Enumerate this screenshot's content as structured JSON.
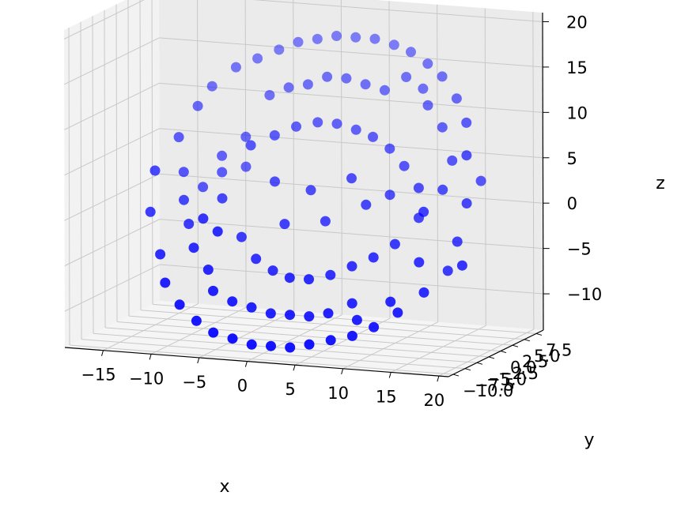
{
  "chart_data": {
    "type": "scatter",
    "projection": "3d",
    "title": "",
    "xlabel": "x",
    "ylabel": "y",
    "zlabel": "z",
    "xlim": [
      -19,
      21
    ],
    "ylim": [
      -11,
      9
    ],
    "zlim": [
      -14,
      21
    ],
    "x_ticks": [
      -15,
      -10,
      -5,
      0,
      5,
      10,
      15,
      20
    ],
    "y_ticks": [
      -10.0,
      -7.5,
      -5.0,
      -2.5,
      0.0,
      2.5,
      5.0,
      7.5
    ],
    "z_ticks": [
      -10,
      -5,
      0,
      5,
      10,
      15,
      20
    ],
    "x_tick_labels": [
      "−15",
      "−10",
      "−5",
      "0",
      "5",
      "10",
      "15",
      "20"
    ],
    "y_tick_labels": [
      "−10.0",
      "−7.5",
      "−5.0",
      "−2.5",
      "0.0",
      "2.5",
      "5.0",
      "7.5"
    ],
    "z_tick_labels": [
      "−10",
      "−5",
      "0",
      "5",
      "10",
      "15",
      "20"
    ],
    "grid": true,
    "marker_color": "#0000ff",
    "series": [
      {
        "shape": "torus-like point cloud",
        "points": [
          [
            -15.0,
            0.0,
            3.0
          ],
          [
            -14.0,
            3.0,
            6.0
          ],
          [
            -14.5,
            -2.0,
            -1.0
          ],
          [
            -13.0,
            5.0,
            9.0
          ],
          [
            -12.5,
            -4.0,
            -5.0
          ],
          [
            -12.0,
            6.0,
            11.0
          ],
          [
            -11.0,
            -6.0,
            -7.5
          ],
          [
            -10.0,
            7.0,
            13.0
          ],
          [
            -9.0,
            -7.0,
            -9.5
          ],
          [
            -8.0,
            7.5,
            14.0
          ],
          [
            -7.0,
            -7.5,
            -11.0
          ],
          [
            -6.0,
            8.0,
            15.0
          ],
          [
            -5.0,
            -8.0,
            -12.0
          ],
          [
            -4.0,
            8.0,
            16.0
          ],
          [
            -3.0,
            -8.0,
            -12.5
          ],
          [
            -2.0,
            8.0,
            16.5
          ],
          [
            -1.0,
            -8.0,
            -13.0
          ],
          [
            0.0,
            8.0,
            17.0
          ],
          [
            1.0,
            -8.0,
            -13.0
          ],
          [
            2.0,
            8.0,
            17.0
          ],
          [
            3.0,
            -8.0,
            -13.0
          ],
          [
            4.0,
            8.0,
            17.0
          ],
          [
            5.0,
            -8.0,
            -12.5
          ],
          [
            6.0,
            8.0,
            16.5
          ],
          [
            7.0,
            -7.5,
            -12.0
          ],
          [
            8.0,
            7.5,
            16.0
          ],
          [
            9.0,
            -7.0,
            -11.5
          ],
          [
            10.0,
            7.0,
            15.0
          ],
          [
            11.0,
            -6.5,
            -10.5
          ],
          [
            12.0,
            6.0,
            14.0
          ],
          [
            13.0,
            -5.5,
            -9.0
          ],
          [
            14.0,
            5.0,
            12.0
          ],
          [
            15.0,
            -4.0,
            -7.0
          ],
          [
            16.0,
            3.0,
            10.0
          ],
          [
            16.5,
            -2.0,
            -5.0
          ],
          [
            17.0,
            1.0,
            7.0
          ],
          [
            17.5,
            0.0,
            2.0
          ],
          [
            17.0,
            -1.0,
            -2.0
          ],
          [
            18.0,
            2.0,
            4.0
          ],
          [
            18.5,
            -3.0,
            -4.0
          ],
          [
            -6.0,
            2.0,
            6.0
          ],
          [
            -5.0,
            -2.0,
            -3.0
          ],
          [
            -4.0,
            3.0,
            7.0
          ],
          [
            -3.0,
            -3.0,
            -5.0
          ],
          [
            -2.0,
            3.5,
            8.0
          ],
          [
            -1.0,
            -3.5,
            -6.0
          ],
          [
            0.0,
            4.0,
            8.5
          ],
          [
            1.0,
            -4.0,
            -6.5
          ],
          [
            2.0,
            4.0,
            8.5
          ],
          [
            3.0,
            -4.0,
            -6.5
          ],
          [
            4.0,
            4.0,
            8.0
          ],
          [
            5.0,
            -3.5,
            -6.0
          ],
          [
            6.0,
            3.5,
            7.5
          ],
          [
            7.0,
            -3.0,
            -5.0
          ],
          [
            8.0,
            3.0,
            6.5
          ],
          [
            9.0,
            -2.5,
            -4.0
          ],
          [
            10.0,
            2.0,
            5.0
          ],
          [
            11.0,
            -2.0,
            -2.5
          ],
          [
            12.0,
            1.0,
            3.0
          ],
          [
            12.5,
            0.0,
            0.0
          ],
          [
            -10.0,
            4.0,
            4.0
          ],
          [
            -9.0,
            -4.0,
            -4.0
          ],
          [
            -8.0,
            5.0,
            6.0
          ],
          [
            -7.0,
            -5.0,
            -6.0
          ],
          [
            -11.0,
            2.0,
            1.0
          ],
          [
            -10.5,
            -2.0,
            -2.0
          ],
          [
            -9.5,
            3.0,
            2.5
          ],
          [
            -8.5,
            -3.0,
            -1.0
          ],
          [
            -7.5,
            4.0,
            3.0
          ],
          [
            -6.5,
            -4.0,
            -2.0
          ],
          [
            13.0,
            4.0,
            9.0
          ],
          [
            14.0,
            -3.0,
            -4.0
          ],
          [
            15.0,
            2.0,
            6.0
          ],
          [
            13.5,
            -1.0,
            1.0
          ],
          [
            14.5,
            1.0,
            3.0
          ],
          [
            11.0,
            5.0,
            11.0
          ],
          [
            12.0,
            -5.0,
            -8.0
          ],
          [
            10.0,
            6.0,
            12.5
          ],
          [
            9.0,
            -6.0,
            -10.0
          ],
          [
            8.0,
            6.5,
            13.5
          ],
          [
            -2.0,
            6.0,
            12.0
          ],
          [
            0.0,
            6.0,
            13.0
          ],
          [
            2.0,
            6.0,
            13.0
          ],
          [
            4.0,
            6.0,
            12.5
          ],
          [
            6.0,
            6.0,
            12.0
          ],
          [
            -2.0,
            -6.0,
            -9.5
          ],
          [
            0.0,
            -6.0,
            -10.0
          ],
          [
            2.0,
            -6.0,
            -10.0
          ],
          [
            4.0,
            -6.0,
            -10.0
          ],
          [
            6.0,
            -6.0,
            -9.5
          ],
          [
            -4.0,
            6.0,
            11.5
          ],
          [
            -4.0,
            -6.0,
            -9.0
          ],
          [
            8.0,
            -5.0,
            -8.5
          ],
          [
            -6.0,
            6.0,
            10.5
          ],
          [
            -6.0,
            -6.0,
            -8.0
          ],
          [
            1.0,
            0.5,
            2.0
          ],
          [
            3.0,
            -0.5,
            -1.0
          ],
          [
            5.0,
            1.0,
            3.5
          ],
          [
            -1.0,
            -1.0,
            -1.5
          ],
          [
            7.0,
            0.0,
            1.0
          ],
          [
            -3.0,
            1.0,
            2.5
          ],
          [
            9.0,
            1.0,
            2.0
          ],
          [
            -8.0,
            0.0,
            0.5
          ],
          [
            -12.0,
            0.0,
            0.0
          ],
          [
            -13.0,
            2.0,
            2.5
          ]
        ]
      }
    ]
  }
}
